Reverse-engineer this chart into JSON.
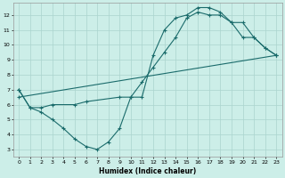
{
  "xlabel": "Humidex (Indice chaleur)",
  "xlim": [
    -0.5,
    23.5
  ],
  "ylim": [
    2.5,
    12.8
  ],
  "xticks": [
    0,
    1,
    2,
    3,
    4,
    5,
    6,
    7,
    8,
    9,
    10,
    11,
    12,
    13,
    14,
    15,
    16,
    17,
    18,
    19,
    20,
    21,
    22,
    23
  ],
  "yticks": [
    3,
    4,
    5,
    6,
    7,
    8,
    9,
    10,
    11,
    12
  ],
  "bg_color": "#cceee8",
  "line_color": "#1a6b6b",
  "grid_color": "#aad4ce",
  "line1_x": [
    0,
    1,
    2,
    3,
    4,
    5,
    6,
    7,
    8,
    9,
    10,
    11,
    12,
    13,
    14,
    15,
    16,
    17,
    18,
    19,
    20,
    21,
    22,
    23
  ],
  "line1_y": [
    7.0,
    5.8,
    5.5,
    5.0,
    4.4,
    3.7,
    3.2,
    3.0,
    3.5,
    4.4,
    6.5,
    6.5,
    9.3,
    11.0,
    11.8,
    12.0,
    12.5,
    12.5,
    12.2,
    11.5,
    10.5,
    10.5,
    9.8,
    9.3
  ],
  "line2_x": [
    0,
    1,
    2,
    3,
    5,
    6,
    9,
    10,
    11,
    12,
    13,
    14,
    15,
    16,
    17,
    18,
    19,
    20,
    21,
    22,
    23
  ],
  "line2_y": [
    7.0,
    5.8,
    5.8,
    6.0,
    6.0,
    6.2,
    6.5,
    6.5,
    7.5,
    8.5,
    9.5,
    10.5,
    11.8,
    12.2,
    12.0,
    12.0,
    11.5,
    11.5,
    10.5,
    9.8,
    9.3
  ],
  "line3_x": [
    0,
    23
  ],
  "line3_y": [
    6.5,
    9.3
  ]
}
